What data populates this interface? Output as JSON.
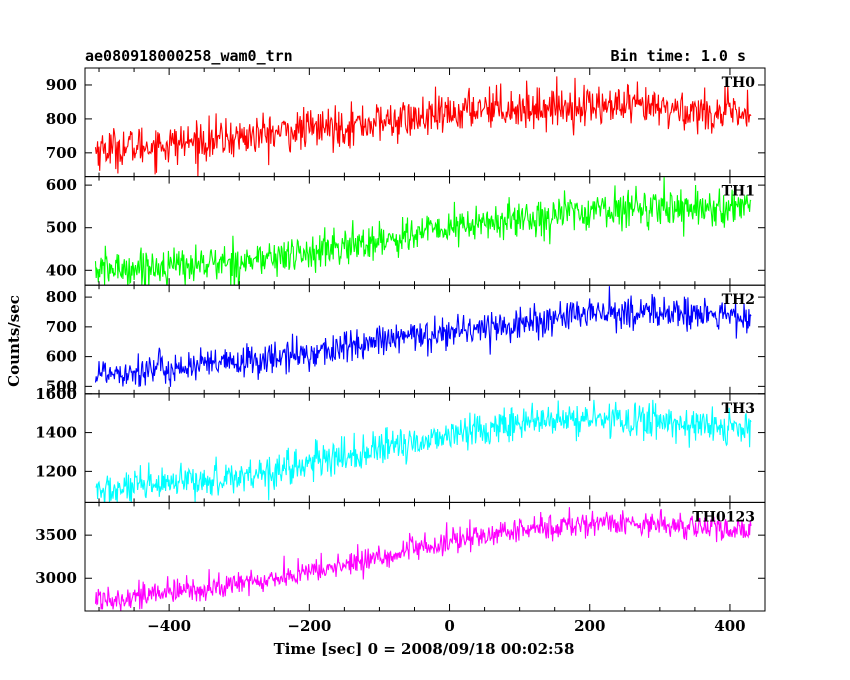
{
  "header": {
    "title": "ae080918000258_wam0_trn",
    "bin_time": "Bin time: 1.0 s"
  },
  "axes": {
    "xlabel": "Time [sec] 0 = 2008/09/18 00:02:58",
    "ylabel": "Counts/sec"
  },
  "chart_data": {
    "type": "line",
    "title": "ae080918000258_wam0_trn",
    "xlabel": "Time [sec] 0 = 2008/09/18 00:02:58",
    "ylabel": "Counts/sec",
    "xlim": [
      -520,
      450
    ],
    "x_ticks": [
      -400,
      -200,
      0,
      200,
      400
    ],
    "x_tick_labels": [
      "−400",
      "−200",
      "0",
      "200",
      "400"
    ],
    "x_range": [
      -505,
      430
    ],
    "bin_time": "1.0 s",
    "panels": [
      {
        "name": "TH0",
        "color": "#ff0000",
        "ylim": [
          630,
          950
        ],
        "yticks": [
          700,
          800,
          900
        ],
        "trend_x": [
          -505,
          -400,
          -300,
          -200,
          -100,
          0,
          50,
          100,
          200,
          300,
          430
        ],
        "trend_y": [
          710,
          725,
          745,
          770,
          790,
          810,
          840,
          830,
          840,
          830,
          810
        ],
        "noise_sd": 30
      },
      {
        "name": "TH1",
        "color": "#00ff00",
        "ylim": [
          365,
          620
        ],
        "yticks": [
          400,
          500,
          600
        ],
        "trend_x": [
          -505,
          -400,
          -300,
          -200,
          -100,
          0,
          100,
          200,
          300,
          430
        ],
        "trend_y": [
          400,
          410,
          420,
          440,
          470,
          500,
          520,
          540,
          550,
          545
        ],
        "noise_sd": 22
      },
      {
        "name": "TH2",
        "color": "#0000ff",
        "ylim": [
          475,
          840
        ],
        "yticks": [
          500,
          600,
          700,
          800
        ],
        "trend_x": [
          -505,
          -400,
          -300,
          -200,
          -100,
          0,
          100,
          200,
          300,
          430
        ],
        "trend_y": [
          545,
          560,
          580,
          610,
          650,
          685,
          710,
          745,
          750,
          730
        ],
        "noise_sd": 28
      },
      {
        "name": "TH3",
        "color": "#00ffff",
        "ylim": [
          1040,
          1600
        ],
        "yticks": [
          1200,
          1400,
          1600
        ],
        "trend_x": [
          -505,
          -400,
          -300,
          -200,
          -100,
          0,
          100,
          200,
          300,
          430
        ],
        "trend_y": [
          1095,
          1130,
          1175,
          1240,
          1310,
          1390,
          1450,
          1470,
          1460,
          1410
        ],
        "noise_sd": 45
      },
      {
        "name": "TH0123",
        "color": "#ff00ff",
        "ylim": [
          2620,
          3880
        ],
        "yticks": [
          3000,
          3500
        ],
        "trend_x": [
          -505,
          -400,
          -300,
          -200,
          -100,
          0,
          100,
          200,
          300,
          430
        ],
        "trend_y": [
          2760,
          2830,
          2930,
          3070,
          3240,
          3420,
          3560,
          3640,
          3640,
          3530
        ],
        "noise_sd": 75
      }
    ]
  }
}
